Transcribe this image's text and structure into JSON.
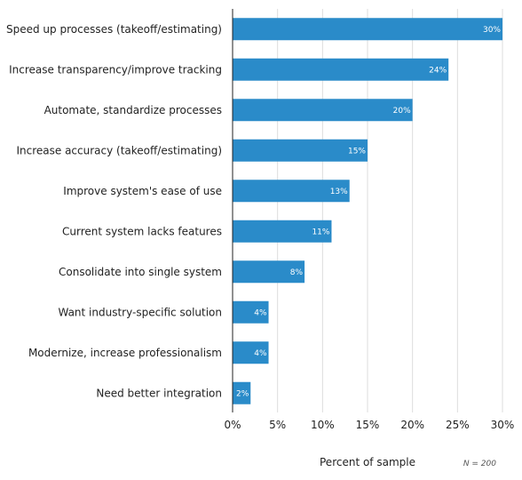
{
  "chart_data": {
    "type": "bar",
    "orientation": "horizontal",
    "categories": [
      "Speed up processes (takeoff/estimating)",
      "Increase transparency/improve tracking",
      "Automate, standardize processes",
      "Increase accuracy (takeoff/estimating)",
      "Improve system's ease of use",
      "Current system lacks features",
      "Consolidate into single system",
      "Want industry-specific solution",
      "Modernize, increase professionalism",
      "Need better integration"
    ],
    "values": [
      30,
      24,
      20,
      15,
      13,
      11,
      8,
      4,
      4,
      2
    ],
    "value_labels": [
      "30%",
      "24%",
      "20%",
      "15%",
      "13%",
      "11%",
      "8%",
      "4%",
      "4%",
      "2%"
    ],
    "xlim": [
      0,
      30
    ],
    "xticks": [
      0,
      5,
      10,
      15,
      20,
      25,
      30
    ],
    "xtick_labels": [
      "0%",
      "5%",
      "10%",
      "15%",
      "20%",
      "25%",
      "30%"
    ],
    "xlabel": "Percent of sample",
    "note": "N = 200",
    "grid": "vertical",
    "bar_color": "#2a8bc9",
    "grid_color": "#dddddd",
    "axis_color": "#222222"
  }
}
